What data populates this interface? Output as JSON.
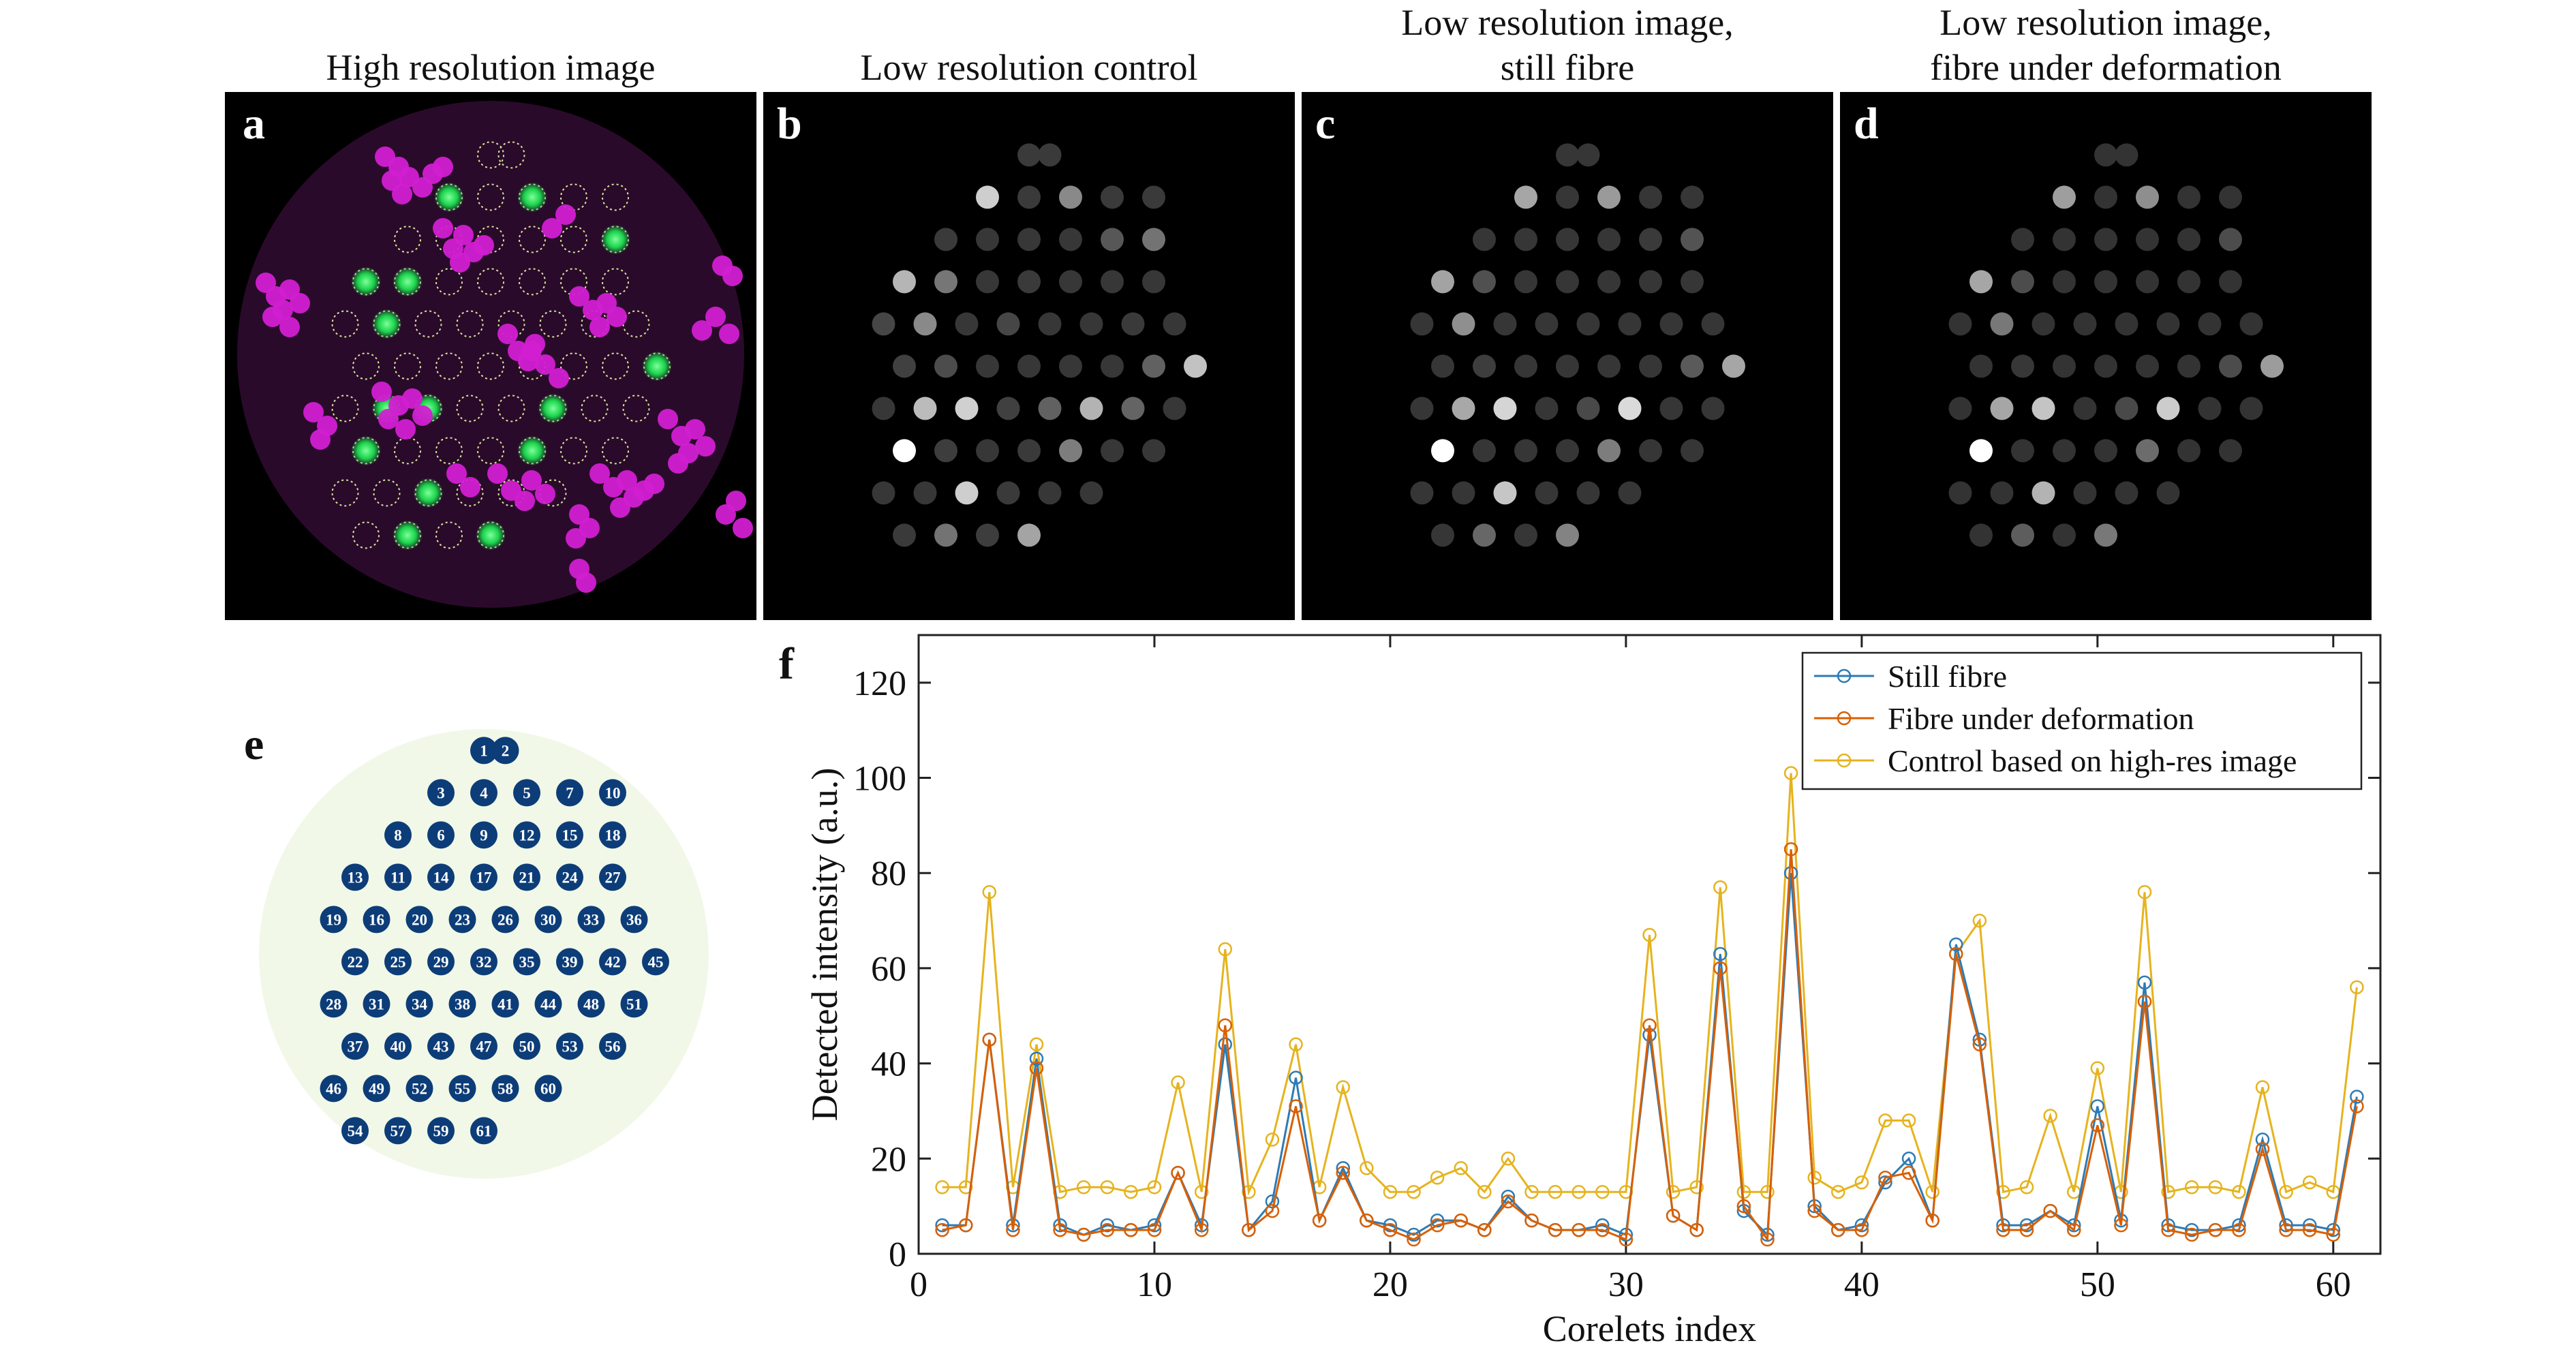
{
  "panels": [
    {
      "label": "a",
      "title_lines": [
        "High resolution image"
      ]
    },
    {
      "label": "b",
      "title_lines": [
        "Low resolution control"
      ]
    },
    {
      "label": "c",
      "title_lines": [
        "Low resolution image,",
        "still fibre"
      ]
    },
    {
      "label": "d",
      "title_lines": [
        "Low resolution image,",
        "fibre under deformation"
      ]
    },
    {
      "label": "e",
      "title_lines": []
    },
    {
      "label": "f",
      "title_lines": []
    }
  ],
  "colors": {
    "still": "#2c7bb6",
    "deform": "#d95f02",
    "control": "#e6b31e",
    "core_blue": "#0d3d78",
    "disc_bg": "#f1f8e8",
    "green_spot": "#19d24a",
    "magenta": "#d21fd2"
  },
  "corelet_numbers": [
    "1",
    "2",
    "3",
    "4",
    "5",
    "6",
    "7",
    "8",
    "9",
    "10",
    "11",
    "12",
    "13",
    "14",
    "15",
    "16",
    "17",
    "18",
    "19",
    "20",
    "21",
    "22",
    "23",
    "24",
    "25",
    "26",
    "27",
    "28",
    "29",
    "30",
    "31",
    "32",
    "33",
    "34",
    "35",
    "36",
    "37",
    "38",
    "39",
    "40",
    "41",
    "42",
    "43",
    "44",
    "45",
    "46",
    "47",
    "48",
    "49",
    "50",
    "51",
    "52",
    "53",
    "54",
    "55",
    "56",
    "57",
    "58",
    "59",
    "60",
    "61"
  ],
  "chart_data": {
    "type": "line",
    "xlabel": "Corelets index",
    "ylabel": "Detected intensity (a.u.)",
    "xlim": [
      0,
      62
    ],
    "ylim": [
      0,
      130
    ],
    "xticks": [
      "0",
      "10",
      "20",
      "30",
      "40",
      "50",
      "60"
    ],
    "yticks": [
      "0",
      "20",
      "40",
      "60",
      "80",
      "100",
      "120"
    ],
    "legend_position": "top-right",
    "marker": "open-circle",
    "x": [
      1,
      2,
      3,
      4,
      5,
      6,
      7,
      8,
      9,
      10,
      11,
      12,
      13,
      14,
      15,
      16,
      17,
      18,
      19,
      20,
      21,
      22,
      23,
      24,
      25,
      26,
      27,
      28,
      29,
      30,
      31,
      32,
      33,
      34,
      35,
      36,
      37,
      38,
      39,
      40,
      41,
      42,
      43,
      44,
      45,
      46,
      47,
      48,
      49,
      50,
      51,
      52,
      53,
      54,
      55,
      56,
      57,
      58,
      59,
      60,
      61
    ],
    "series": [
      {
        "name": "Still fibre",
        "color_key": "still",
        "values": [
          6,
          6,
          45,
          6,
          41,
          6,
          4,
          6,
          5,
          6,
          17,
          6,
          44,
          5,
          11,
          37,
          7,
          18,
          7,
          6,
          4,
          7,
          7,
          5,
          12,
          7,
          5,
          5,
          6,
          4,
          46,
          8,
          5,
          63,
          9,
          4,
          80,
          10,
          5,
          6,
          15,
          20,
          7,
          65,
          45,
          6,
          6,
          9,
          6,
          31,
          7,
          57,
          6,
          5,
          5,
          6,
          24,
          6,
          6,
          5,
          33
        ]
      },
      {
        "name": "Fibre under deformation",
        "color_key": "deform",
        "values": [
          5,
          6,
          45,
          5,
          39,
          5,
          4,
          5,
          5,
          5,
          17,
          5,
          48,
          5,
          9,
          31,
          7,
          17,
          7,
          5,
          3,
          6,
          7,
          5,
          11,
          7,
          5,
          5,
          5,
          3,
          48,
          8,
          5,
          60,
          10,
          3,
          85,
          9,
          5,
          5,
          16,
          17,
          7,
          63,
          44,
          5,
          5,
          9,
          5,
          27,
          6,
          53,
          5,
          4,
          5,
          5,
          22,
          5,
          5,
          4,
          31
        ]
      },
      {
        "name": "Control based on high-res image",
        "color_key": "control",
        "values": [
          14,
          14,
          76,
          14,
          44,
          13,
          14,
          14,
          13,
          14,
          36,
          13,
          64,
          13,
          24,
          44,
          14,
          35,
          18,
          13,
          13,
          16,
          18,
          13,
          20,
          13,
          13,
          13,
          13,
          13,
          67,
          13,
          14,
          77,
          13,
          13,
          101,
          16,
          13,
          15,
          28,
          28,
          13,
          63,
          70,
          13,
          14,
          29,
          13,
          39,
          13,
          76,
          13,
          14,
          14,
          13,
          35,
          13,
          15,
          13,
          56
        ]
      }
    ]
  }
}
